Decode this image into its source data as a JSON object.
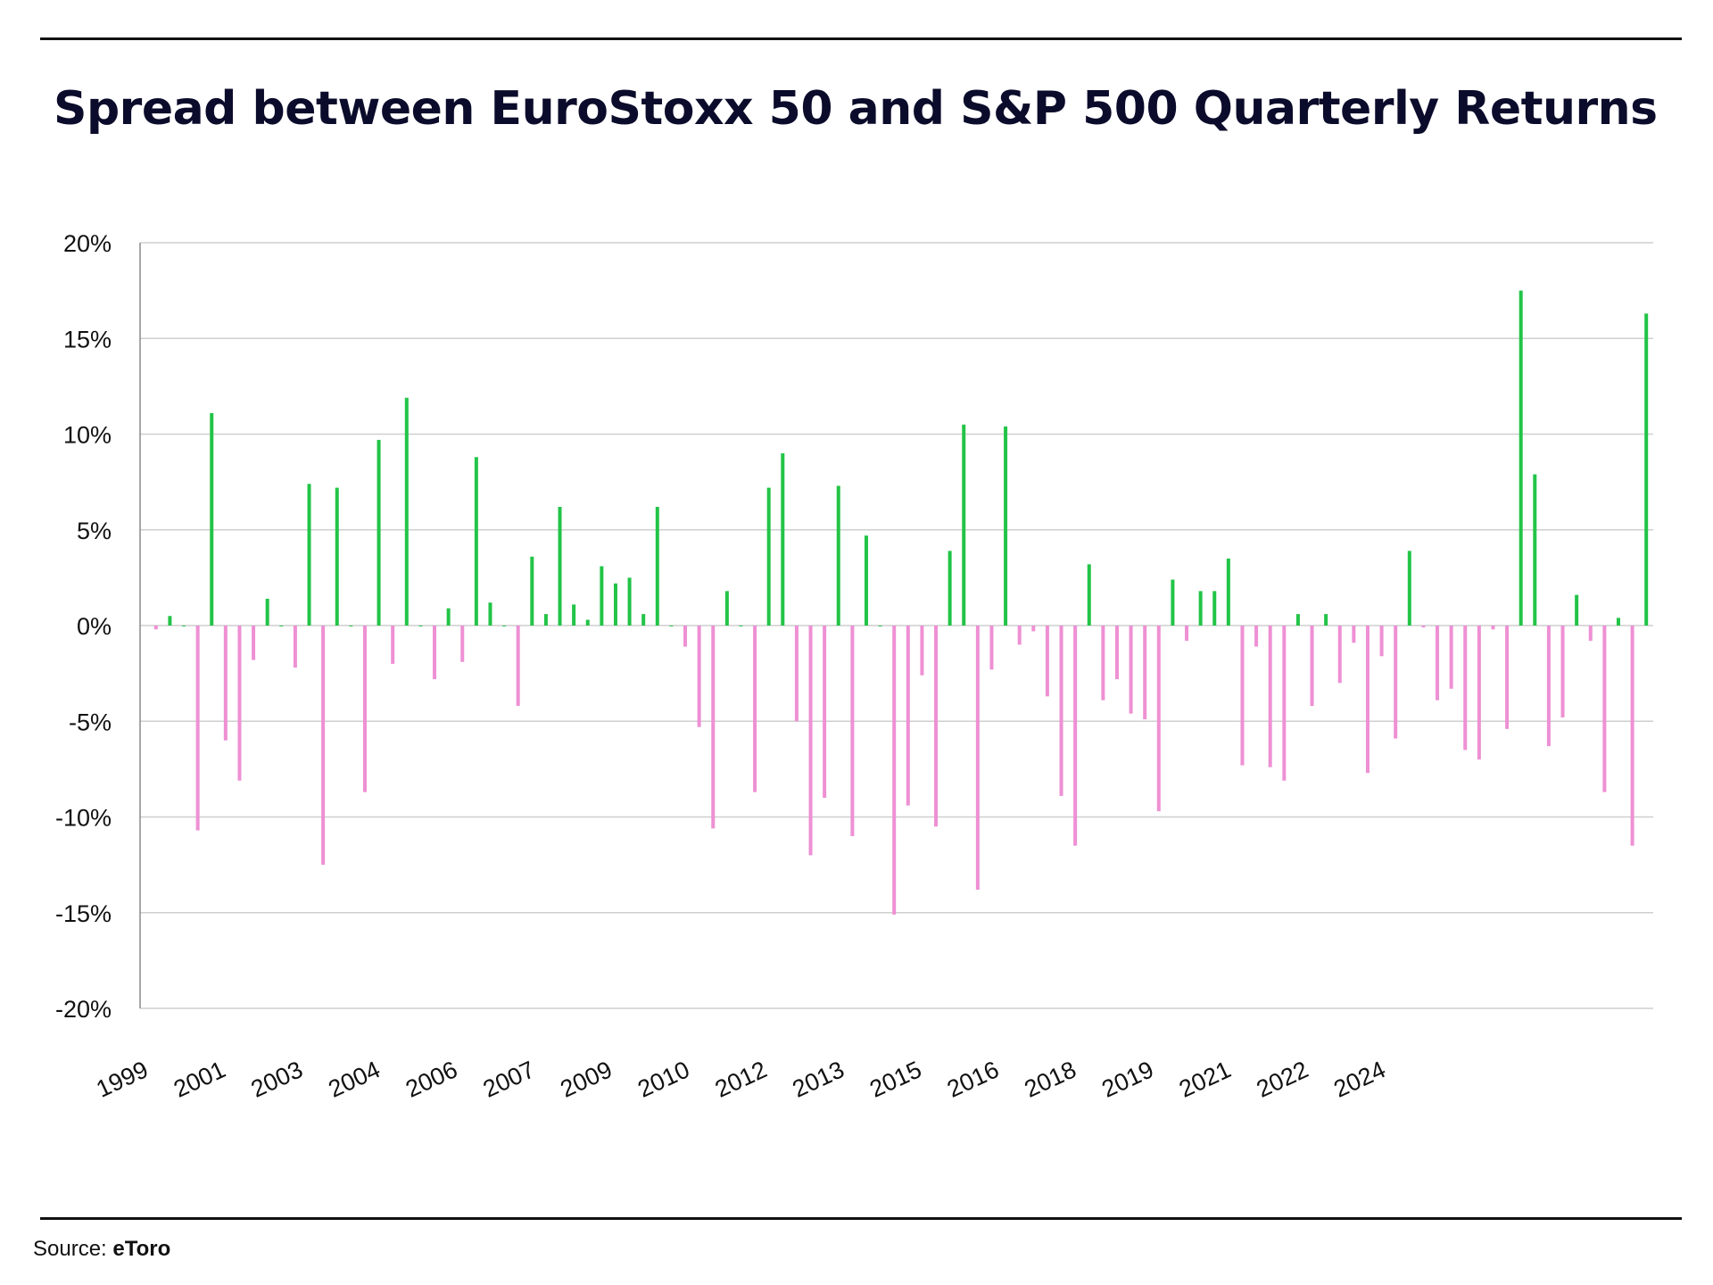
{
  "title": "Spread between EuroStoxx 50 and S&P 500 Quarterly Returns",
  "source": {
    "label": "Source:",
    "brand": "eToro"
  },
  "colors": {
    "positive": "#22c447",
    "negative": "#ee90d4",
    "grid": "#cfcfcf",
    "axis": "#8a8a8a"
  },
  "chart_data": {
    "type": "bar",
    "title": "Spread between EuroStoxx 50 and S&P 500 Quarterly Returns",
    "ylabel": "",
    "xlabel": "",
    "ylim": [
      -20,
      20
    ],
    "yticks": [
      "20%",
      "15%",
      "10%",
      "5%",
      "0%",
      "-5%",
      "-10%",
      "-15%",
      "-20%"
    ],
    "xtick_labels": [
      "1999",
      "2001",
      "2003",
      "2004",
      "2006",
      "2007",
      "2009",
      "2010",
      "2012",
      "2013",
      "2015",
      "2016",
      "2018",
      "2019",
      "2021",
      "2022",
      "2024"
    ],
    "grid": true,
    "series": [
      {
        "values": [
          -0.2,
          0.5,
          0,
          -10.7,
          11.1,
          -6.0,
          -8.1,
          -1.8,
          1.4,
          0,
          -2.2,
          7.4,
          -12.5,
          7.2,
          0,
          -8.7,
          9.7,
          -2.0,
          11.9,
          0,
          -2.8,
          0.9,
          -1.9,
          8.8,
          1.2,
          0,
          -4.2,
          3.6,
          0.6,
          6.2,
          1.1,
          0.3,
          3.1,
          2.2,
          2.5,
          0.6,
          6.2,
          0,
          -1.1,
          -5.3,
          -10.6,
          1.8,
          0,
          -8.7,
          7.2,
          9.0,
          -5.0,
          -12.0,
          -9.0,
          7.3,
          -11.0,
          4.7,
          0,
          -15.1,
          -9.4,
          -2.6,
          -10.5,
          3.9,
          10.5,
          -13.8,
          -2.3,
          10.4,
          -1.0,
          -0.3,
          -3.7,
          -8.9,
          -11.5,
          3.2,
          -3.9,
          -2.8,
          -4.6,
          -4.9,
          -9.7,
          2.4,
          -0.8,
          1.8,
          1.8,
          3.5,
          -7.3,
          -1.1,
          -7.4,
          -8.1,
          0.6,
          -4.2,
          0.6,
          -3.0,
          -0.9,
          -7.7,
          -1.6,
          -5.9,
          3.9,
          -0.1,
          -3.9,
          -3.3,
          -6.5,
          -7.0,
          -0.2,
          -5.4,
          17.5,
          7.9,
          -6.3,
          -4.8,
          1.6,
          -0.8,
          -8.7,
          0.4,
          -11.5,
          16.3
        ]
      }
    ]
  }
}
